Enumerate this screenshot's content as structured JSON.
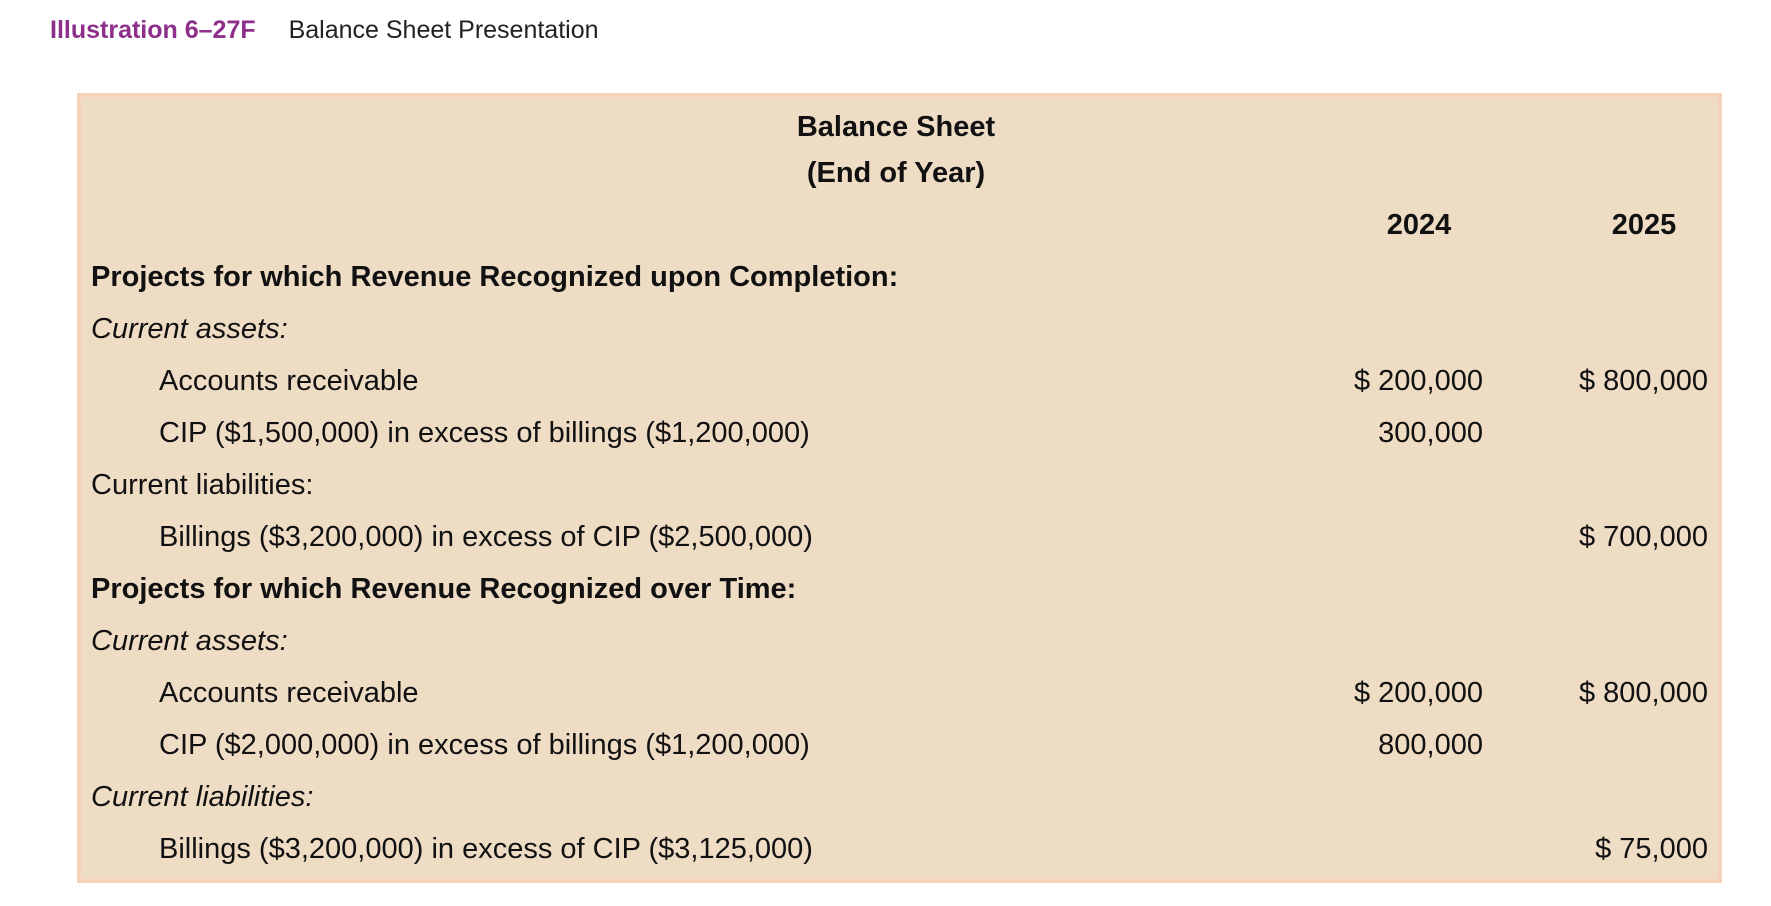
{
  "header": {
    "number": "Illustration 6–27F",
    "title": "Balance Sheet Presentation"
  },
  "statement": {
    "title": "Balance Sheet",
    "subtitle": "(End of Year)",
    "years": [
      "2024",
      "2025"
    ],
    "rows": [
      {
        "label": "Projects for which Revenue Recognized upon Completion:",
        "v2024": "",
        "v2025": ""
      },
      {
        "label": "Current assets:",
        "v2024": "",
        "v2025": ""
      },
      {
        "label": "Accounts receivable",
        "v2024": "$ 200,000",
        "v2025": "$ 800,000"
      },
      {
        "label": "CIP ($1,500,000) in excess of billings ($1,200,000)",
        "v2024": "300,000",
        "v2025": ""
      },
      {
        "label": "Current liabilities:",
        "v2024": "",
        "v2025": ""
      },
      {
        "label": "Billings ($3,200,000) in excess of CIP ($2,500,000)",
        "v2024": "",
        "v2025": "$ 700,000"
      },
      {
        "label": "Projects for which Revenue Recognized over Time:",
        "v2024": "",
        "v2025": ""
      },
      {
        "label": "Current assets:",
        "v2024": "",
        "v2025": ""
      },
      {
        "label": "Accounts receivable",
        "v2024": "$ 200,000",
        "v2025": "$ 800,000"
      },
      {
        "label": "CIP ($2,000,000) in excess of billings ($1,200,000)",
        "v2024": "800,000",
        "v2025": ""
      },
      {
        "label": "Current liabilities:",
        "v2024": "",
        "v2025": ""
      },
      {
        "label": "Billings ($3,200,000) in excess of CIP ($3,125,000)",
        "v2024": "",
        "v2025": "$ 75,000"
      }
    ]
  }
}
